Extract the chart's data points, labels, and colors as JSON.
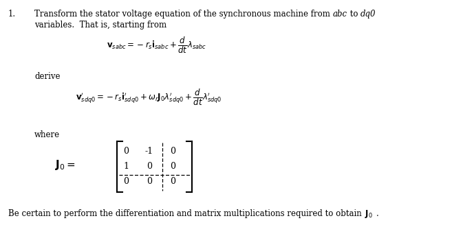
{
  "bg_color": "#ffffff",
  "text_color": "#000000",
  "fig_width": 6.73,
  "fig_height": 3.28,
  "dpi": 100,
  "font_size_body": 8.5,
  "font_size_eq": 8.5,
  "font_size_matrix": 9.0,
  "number": "1.",
  "para1_plain": "Transform the stator voltage equation of the synchronous machine from ",
  "para1_italic1": "abc",
  "para1_mid": " to ",
  "para1_italic2": "dq0",
  "para2": "variables.  That is, starting from",
  "eq1": "$\\mathbf{v}_{sabc} = -r_s\\mathbf{i}_{sabc} + \\dfrac{d}{dt}\\lambda_{sabc}$",
  "word_derive": "derive",
  "eq2": "$\\mathbf{v}^{\\prime}_{sdq0} = -r_s\\mathbf{i}^{\\prime}_{sdq0} + \\omega_r \\mathbf{J}_0 \\lambda^{\\prime}_{sdq0} + \\dfrac{d}{dt}\\lambda^{\\prime}_{sdq0}$",
  "word_where": "where",
  "J0_label": "$\\mathbf{J}_0 = $",
  "matrix_rows": [
    [
      "0",
      "-1",
      "0"
    ],
    [
      "1",
      "0",
      "0"
    ],
    [
      "0",
      "0",
      "0"
    ]
  ],
  "footer_plain": "Be certain to perform the differentiation and matrix multiplications required to obtain ",
  "footer_bold": "$\\mathbf{J}_0$",
  "footer_end": "."
}
